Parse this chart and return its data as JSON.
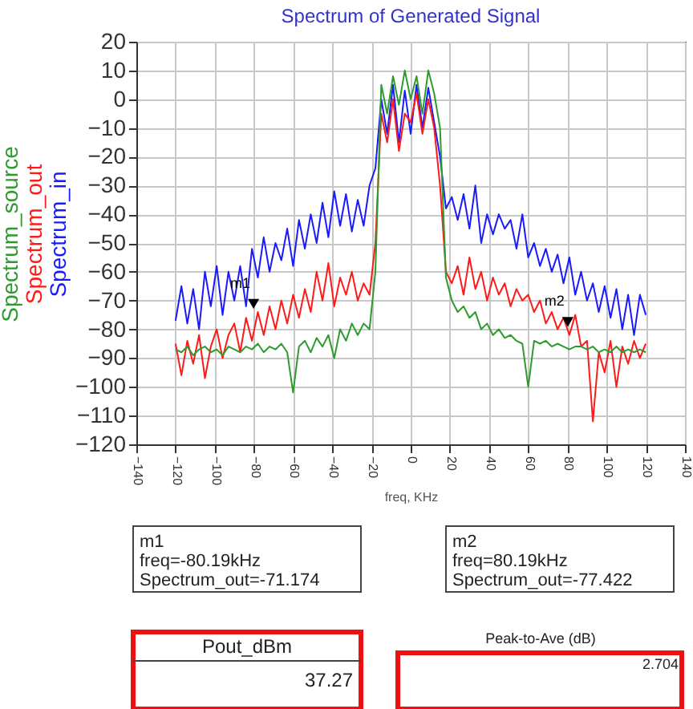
{
  "chart_data": {
    "type": "line",
    "title": "Spectrum of Generated Signal",
    "xlabel": "freq, KHz",
    "x": [
      -120,
      -117,
      -114,
      -111,
      -108,
      -105,
      -102,
      -99,
      -96,
      -93,
      -90,
      -87,
      -84,
      -81,
      -78,
      -75,
      -72,
      -69,
      -66,
      -63,
      -60,
      -57,
      -54,
      -51,
      -48,
      -45,
      -42,
      -39,
      -36,
      -33,
      -30,
      -27,
      -24,
      -21,
      -18,
      -15,
      -12,
      -9,
      -6,
      -3,
      0,
      3,
      6,
      9,
      12,
      15,
      18,
      21,
      24,
      27,
      30,
      33,
      36,
      39,
      42,
      45,
      48,
      51,
      54,
      57,
      60,
      63,
      66,
      69,
      72,
      75,
      78,
      81,
      84,
      87,
      90,
      93,
      96,
      99,
      102,
      105,
      108,
      111,
      114,
      117,
      120
    ],
    "series": [
      {
        "name": "Spectrum_in",
        "color": "#1a1aff",
        "values": [
          -77,
          -65,
          -78,
          -66,
          -80,
          -60,
          -72,
          -58,
          -75,
          -60,
          -70,
          -58,
          -72,
          -52,
          -62,
          -48,
          -60,
          -50,
          -56,
          -45,
          -58,
          -42,
          -52,
          -40,
          -50,
          -36,
          -48,
          -32,
          -44,
          -33,
          -46,
          -35,
          -44,
          -30,
          -24,
          0,
          -12,
          5,
          -15,
          3,
          -12,
          5,
          -10,
          4,
          -8,
          -20,
          -38,
          -34,
          -42,
          -33,
          -45,
          -30,
          -50,
          -40,
          -47,
          -40,
          -45,
          -42,
          -52,
          -40,
          -55,
          -50,
          -58,
          -52,
          -60,
          -54,
          -64,
          -55,
          -68,
          -60,
          -70,
          -64,
          -74,
          -65,
          -76,
          -66,
          -80,
          -68,
          -82,
          -68,
          -75
        ]
      },
      {
        "name": "Spectrum_out",
        "color": "#ff1a1a",
        "values": [
          -85,
          -96,
          -84,
          -92,
          -82,
          -97,
          -86,
          -80,
          -90,
          -82,
          -78,
          -88,
          -76,
          -84,
          -74,
          -82,
          -72,
          -80,
          -70,
          -78,
          -68,
          -76,
          -66,
          -74,
          -60,
          -70,
          -57,
          -72,
          -62,
          -68,
          -60,
          -70,
          -64,
          -68,
          -50,
          -5,
          -15,
          0,
          -18,
          -5,
          -8,
          2,
          -12,
          0,
          -10,
          -30,
          -60,
          -64,
          -58,
          -68,
          -55,
          -66,
          -60,
          -70,
          -62,
          -68,
          -64,
          -72,
          -66,
          -70,
          -68,
          -74,
          -70,
          -78,
          -74,
          -80,
          -76,
          -82,
          -75,
          -86,
          -84,
          -112,
          -88,
          -95,
          -84,
          -100,
          -86,
          -92,
          -84,
          -90,
          -85
        ]
      },
      {
        "name": "Spectrum_source",
        "color": "#2e9b2e",
        "values": [
          -87,
          -88,
          -86,
          -89,
          -87,
          -86,
          -88,
          -87,
          -89,
          -86,
          -87,
          -88,
          -86,
          -87,
          -85,
          -88,
          -86,
          -87,
          -85,
          -88,
          -102,
          -86,
          -84,
          -88,
          -83,
          -86,
          -82,
          -90,
          -80,
          -84,
          -78,
          -82,
          -78,
          -80,
          -60,
          5,
          -5,
          8,
          -2,
          10,
          0,
          8,
          -5,
          10,
          2,
          -10,
          -62,
          -70,
          -74,
          -72,
          -76,
          -74,
          -80,
          -78,
          -82,
          -80,
          -83,
          -82,
          -84,
          -85,
          -100,
          -84,
          -85,
          -84,
          -86,
          -85,
          -86,
          -87,
          -86,
          -86,
          -87,
          -86,
          -88,
          -87,
          -88,
          -86,
          -88,
          -87,
          -88,
          -87,
          -88
        ]
      }
    ],
    "xlim": [
      -140,
      140
    ],
    "xticks": [
      -140,
      -120,
      -100,
      -80,
      -60,
      -40,
      -20,
      0,
      20,
      40,
      60,
      80,
      100,
      120,
      140
    ],
    "ylim": [
      -120,
      20
    ],
    "yticks": [
      -120,
      -110,
      -100,
      -90,
      -80,
      -70,
      -60,
      -50,
      -40,
      -30,
      -20,
      -10,
      0,
      10,
      20
    ],
    "grid": true,
    "legend": "left",
    "line_style": "solid",
    "annotations": [
      {
        "text": "m1",
        "x": -80.19,
        "y": -71.174
      },
      {
        "text": "m2",
        "x": 80.19,
        "y": -77.422
      },
      "m1\nfreq=-80.19kHz\nSpectrum_out=-71.174",
      "m2\nfreq=80.19kHz\nSpectrum_out=-77.422",
      "Pout_dBm",
      "37.27",
      "Peak-to-Ave (dB)",
      "2.704"
    ]
  }
}
